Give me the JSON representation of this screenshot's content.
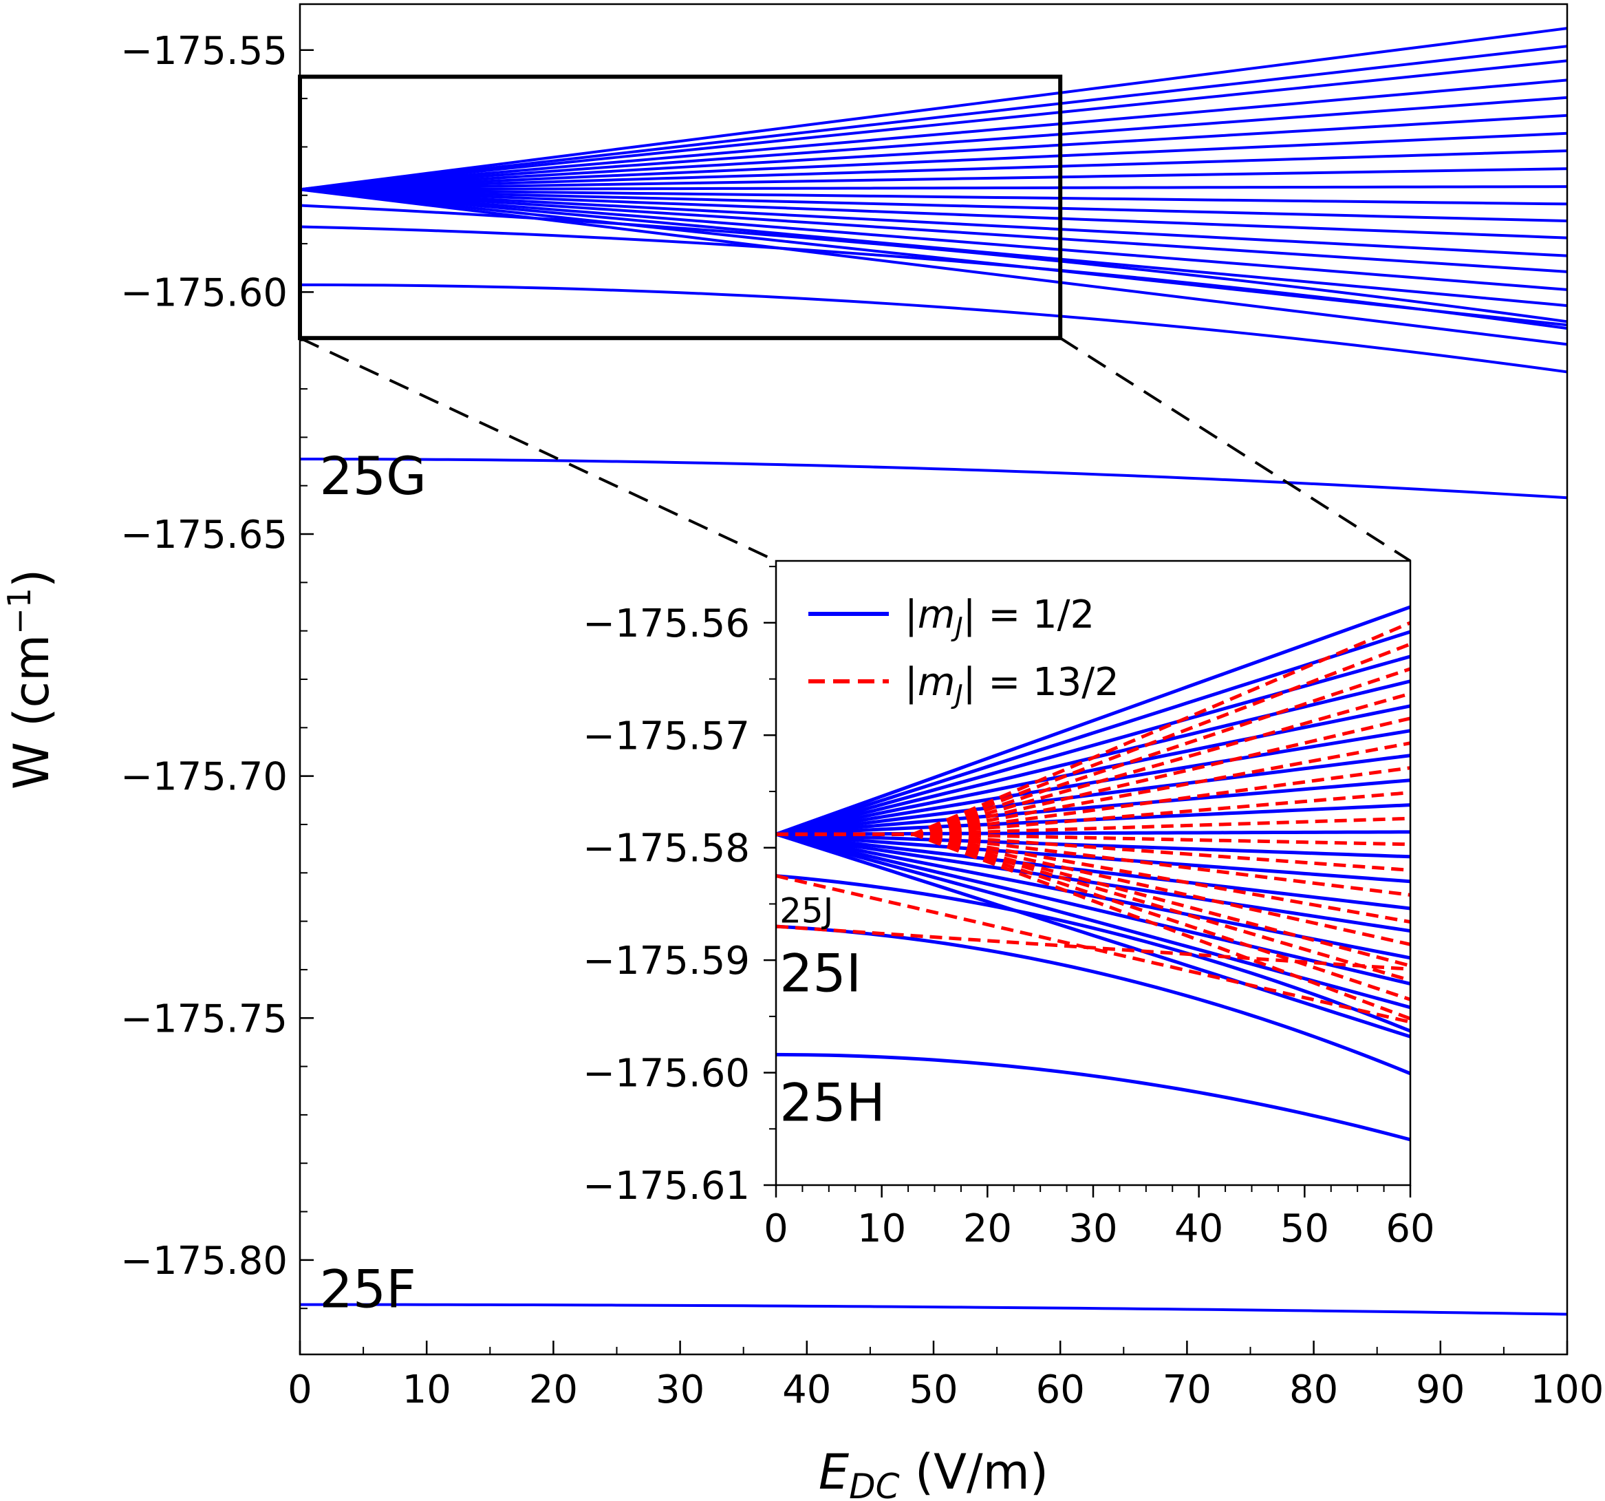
{
  "chart_data": [
    {
      "type": "line",
      "panel": "main",
      "xlabel_main": "E",
      "xlabel_sub": "DC",
      "xlabel_rest": " (V/m)",
      "ylabel": "W (cm",
      "ylabel_sup": "−1",
      "ylabel_end": ")",
      "xlim": [
        0,
        100
      ],
      "ylim": [
        -175.8195,
        -175.5405
      ],
      "x_ticks": [
        0,
        10,
        20,
        30,
        40,
        50,
        60,
        70,
        80,
        90,
        100
      ],
      "x_tick_labels": [
        "0",
        "10",
        "20",
        "30",
        "40",
        "50",
        "60",
        "70",
        "80",
        "90",
        "100"
      ],
      "y_ticks": [
        -175.55,
        -175.6,
        -175.65,
        -175.7,
        -175.75,
        -175.8
      ],
      "y_tick_labels": [
        "−175.55",
        "−175.60",
        "−175.65",
        "−175.70",
        "−175.75",
        "−175.80"
      ],
      "manifold_labels": [
        {
          "text": "25G",
          "x": 1,
          "y": -175.6375
        },
        {
          "text": "25F",
          "x": 1,
          "y": -175.8055
        }
      ],
      "zoom_box": {
        "x": [
          0,
          60
        ],
        "y": [
          -175.6095,
          -175.5555
        ]
      },
      "series_style": {
        "name": "|mJ| = 1/2",
        "color": "#0000ff"
      },
      "series": [
        {
          "name": "25F",
          "x0": -175.8092,
          "c2": -2e-07
        },
        {
          "name": "25G",
          "x0": -175.6345,
          "c2": -8e-07
        },
        {
          "name": "25H",
          "x0": -175.5985,
          "c2": -1.8e-06
        },
        {
          "name": "25I",
          "x0": -175.5865,
          "c1": -6e-05,
          "c2": -1.5e-06
        },
        {
          "name": "25J",
          "x0": -175.5821,
          "c1": -0.00012,
          "c2": -1.2e-06
        },
        {
          "name": "fan-1",
          "x0": -175.5788,
          "end": -175.6108
        },
        {
          "name": "fan-2",
          "x0": -175.5788,
          "end": -175.6068
        },
        {
          "name": "fan-3",
          "x0": -175.5788,
          "end": -175.6028
        },
        {
          "name": "fan-4",
          "x0": -175.5788,
          "end": -175.5995
        },
        {
          "name": "fan-5",
          "x0": -175.5788,
          "end": -175.5958
        },
        {
          "name": "fan-6",
          "x0": -175.5788,
          "end": -175.5925
        },
        {
          "name": "fan-7",
          "x0": -175.5788,
          "end": -175.5888
        },
        {
          "name": "fan-8",
          "x0": -175.5788,
          "end": -175.5853
        },
        {
          "name": "fan-9",
          "x0": -175.5788,
          "end": -175.5818
        },
        {
          "name": "fan-10",
          "x0": -175.5788,
          "end": -175.5782
        },
        {
          "name": "fan-11",
          "x0": -175.5788,
          "end": -175.5745
        },
        {
          "name": "fan-12",
          "x0": -175.5788,
          "end": -175.5708
        },
        {
          "name": "fan-13",
          "x0": -175.5788,
          "end": -175.5672
        },
        {
          "name": "fan-14",
          "x0": -175.5788,
          "end": -175.5635
        },
        {
          "name": "fan-15",
          "x0": -175.5788,
          "end": -175.5598
        },
        {
          "name": "fan-16",
          "x0": -175.5788,
          "end": -175.5562
        },
        {
          "name": "fan-17",
          "x0": -175.5788,
          "end": -175.5522
        },
        {
          "name": "fan-18",
          "x0": -175.5788,
          "end": -175.5492
        },
        {
          "name": "fan-19",
          "x0": -175.5788,
          "end": -175.5455
        }
      ]
    },
    {
      "type": "line",
      "panel": "inset",
      "xlim": [
        0,
        60
      ],
      "ylim": [
        -175.61,
        -175.5545
      ],
      "x_ticks": [
        0,
        10,
        20,
        30,
        40,
        50,
        60
      ],
      "x_tick_labels": [
        "0",
        "10",
        "20",
        "30",
        "40",
        "50",
        "60"
      ],
      "y_ticks": [
        -175.56,
        -175.57,
        -175.58,
        -175.59,
        -175.6,
        -175.61
      ],
      "y_tick_labels": [
        "−175.56",
        "−175.57",
        "−175.58",
        "−175.59",
        "−175.60",
        "−175.61"
      ],
      "legend": [
        {
          "pre": "|m",
          "sub": "J",
          "post": "| = 1/2",
          "color": "#0000ff",
          "style": "solid"
        },
        {
          "pre": "|m",
          "sub": "J",
          "post": "| = 13/2",
          "color": "#ff0000",
          "style": "dashed"
        }
      ],
      "manifold_labels": [
        {
          "text": "25J",
          "x": 0.2,
          "y": -175.5855,
          "size": "small"
        },
        {
          "text": "25I",
          "x": 0.2,
          "y": -175.591,
          "size": "large"
        },
        {
          "text": "25H",
          "x": 0.2,
          "y": -175.6025,
          "size": "large"
        }
      ],
      "blue_series": [
        {
          "name": "25H",
          "x0": -175.5984,
          "c2": -2.1e-06
        },
        {
          "name": "25I",
          "x0": -175.587,
          "c1": -5e-05,
          "c2": -2.8e-06
        },
        {
          "name": "25J",
          "x0": -175.5825,
          "c1": -8e-05,
          "c2": -2.5e-06
        },
        {
          "name": "fan-1",
          "x0": -175.5788,
          "end": -175.5968
        },
        {
          "name": "fan-2",
          "x0": -175.5788,
          "end": -175.5942
        },
        {
          "name": "fan-3",
          "x0": -175.5788,
          "end": -175.5921
        },
        {
          "name": "fan-4",
          "x0": -175.5788,
          "end": -175.5898
        },
        {
          "name": "fan-5",
          "x0": -175.5788,
          "end": -175.5874
        },
        {
          "name": "fan-6",
          "x0": -175.5788,
          "end": -175.5854
        },
        {
          "name": "fan-7",
          "x0": -175.5788,
          "end": -175.583
        },
        {
          "name": "fan-8",
          "x0": -175.5788,
          "end": -175.5808
        },
        {
          "name": "fan-9",
          "x0": -175.5788,
          "end": -175.5786
        },
        {
          "name": "fan-10",
          "x0": -175.5788,
          "end": -175.5762
        },
        {
          "name": "fan-11",
          "x0": -175.5788,
          "end": -175.574
        },
        {
          "name": "fan-12",
          "x0": -175.5788,
          "end": -175.5718
        },
        {
          "name": "fan-13",
          "x0": -175.5788,
          "end": -175.5696
        },
        {
          "name": "fan-14",
          "x0": -175.5788,
          "end": -175.5674
        },
        {
          "name": "fan-15",
          "x0": -175.5788,
          "end": -175.5652
        },
        {
          "name": "fan-16",
          "x0": -175.5788,
          "end": -175.563
        },
        {
          "name": "fan-17",
          "x0": -175.5788,
          "end": -175.5608
        },
        {
          "name": "fan-18",
          "x0": -175.5788,
          "end": -175.5586
        }
      ],
      "red_series": [
        {
          "name": "25I-13/2",
          "x0": -175.587,
          "x_start": 0,
          "end": -175.5908
        },
        {
          "name": "25J-13/2",
          "x0": -175.5825,
          "x_start": 0,
          "end": -175.5955
        },
        {
          "name": "r-1",
          "x0": -175.5788,
          "x_start": 13,
          "end": -175.5952
        },
        {
          "name": "r-2",
          "x0": -175.5788,
          "x_start": 13,
          "end": -175.5935
        },
        {
          "name": "r-3",
          "x0": -175.5788,
          "x_start": 13,
          "end": -175.5918
        },
        {
          "name": "r-4",
          "x0": -175.5788,
          "x_start": 13,
          "end": -175.5905
        },
        {
          "name": "r-5",
          "x0": -175.5788,
          "x_start": 13,
          "end": -175.5886
        },
        {
          "name": "r-6",
          "x0": -175.5788,
          "x_start": 13,
          "end": -175.5866
        },
        {
          "name": "r-7",
          "x0": -175.5788,
          "x_start": 13,
          "end": -175.5842
        },
        {
          "name": "r-8",
          "x0": -175.5788,
          "x_start": 13,
          "end": -175.582
        },
        {
          "name": "r-9",
          "x0": -175.5788,
          "x_start": 13,
          "end": -175.5797
        },
        {
          "name": "r-10",
          "x0": -175.5788,
          "x_start": 13,
          "end": -175.5774
        },
        {
          "name": "r-11",
          "x0": -175.5788,
          "x_start": 13,
          "end": -175.5751
        },
        {
          "name": "r-12",
          "x0": -175.5788,
          "x_start": 13,
          "end": -175.5729
        },
        {
          "name": "r-13",
          "x0": -175.5788,
          "x_start": 13,
          "end": -175.5707
        },
        {
          "name": "r-14",
          "x0": -175.5788,
          "x_start": 13,
          "end": -175.5685
        },
        {
          "name": "r-15",
          "x0": -175.5788,
          "x_start": 13,
          "end": -175.5663
        },
        {
          "name": "r-16",
          "x0": -175.5788,
          "x_start": 13,
          "end": -175.5641
        },
        {
          "name": "r-17",
          "x0": -175.5788,
          "x_start": 13,
          "end": -175.5619
        },
        {
          "name": "r-18",
          "x0": -175.5788,
          "x_start": 13,
          "end": -175.56
        }
      ]
    }
  ]
}
